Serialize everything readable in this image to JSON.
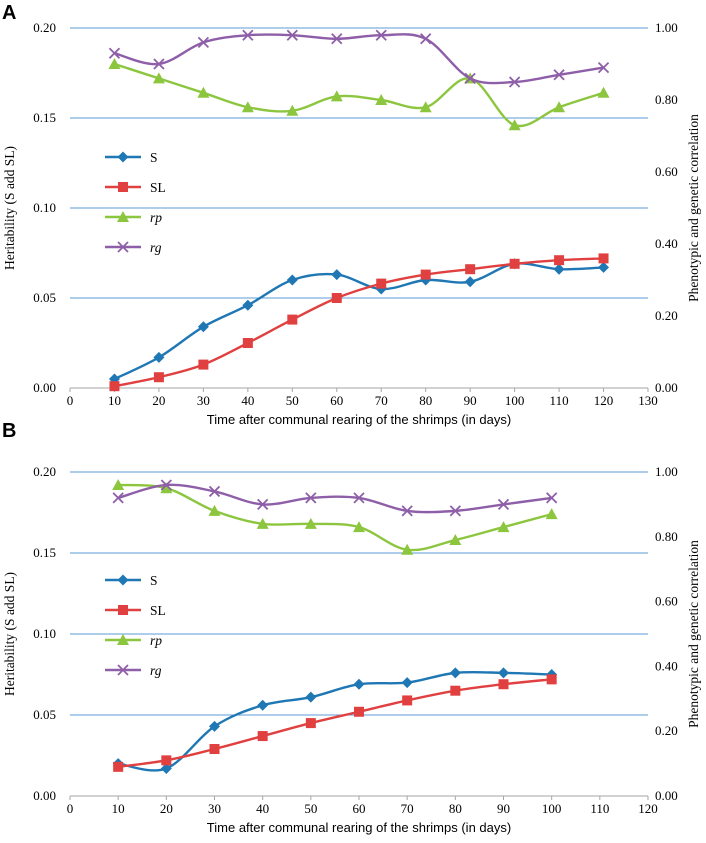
{
  "chart_data": [
    {
      "panel": "A",
      "type": "line",
      "xlabel": "Time after communal rearing of the shrimps (in days)",
      "ylabel": "Heritability (S add SL)",
      "y2label": "Phenotypic and genetic correlation",
      "xlim": [
        0,
        130
      ],
      "xticks": [
        0,
        10,
        20,
        30,
        40,
        50,
        60,
        70,
        80,
        90,
        100,
        110,
        120,
        130
      ],
      "ylim": [
        0,
        0.2
      ],
      "yticks": [
        "0.00",
        "0.05",
        "0.10",
        "0.15",
        "0.20"
      ],
      "y2lim": [
        0,
        1
      ],
      "y2ticks": [
        "0.00",
        "0.20",
        "0.40",
        "0.60",
        "0.80",
        "1.00"
      ],
      "grid": true,
      "legend": "center-left",
      "x": [
        10,
        20,
        30,
        40,
        50,
        60,
        70,
        80,
        90,
        100,
        110,
        120
      ],
      "series": [
        {
          "name": "S",
          "axis": "left",
          "color": "#1f77b4",
          "marker": "diamond",
          "italic": false,
          "values": [
            0.005,
            0.017,
            0.034,
            0.046,
            0.06,
            0.063,
            0.055,
            0.06,
            0.059,
            0.069,
            0.066,
            0.067
          ]
        },
        {
          "name": "SL",
          "axis": "left",
          "color": "#e04040",
          "marker": "square",
          "italic": false,
          "values": [
            0.001,
            0.006,
            0.013,
            0.025,
            0.038,
            0.05,
            0.058,
            0.063,
            0.066,
            0.069,
            0.071,
            0.072
          ]
        },
        {
          "name": "rp",
          "axis": "right",
          "color": "#8cc63f",
          "marker": "triangle",
          "italic": true,
          "values": [
            0.9,
            0.86,
            0.82,
            0.78,
            0.77,
            0.81,
            0.8,
            0.78,
            0.86,
            0.73,
            0.78,
            0.82
          ]
        },
        {
          "name": "rg",
          "axis": "right",
          "color": "#8e5fa8",
          "marker": "x",
          "italic": true,
          "values": [
            0.93,
            0.9,
            0.96,
            0.98,
            0.98,
            0.97,
            0.98,
            0.97,
            0.86,
            0.85,
            0.87,
            0.89
          ]
        }
      ]
    },
    {
      "panel": "B",
      "type": "line",
      "xlabel": "Time after communal rearing of the shrimps (in days)",
      "ylabel": "Heritability (S add SL)",
      "y2label": "Phenotypic and genetic correlation",
      "xlim": [
        0,
        120
      ],
      "xticks": [
        0,
        10,
        20,
        30,
        40,
        50,
        60,
        70,
        80,
        90,
        100,
        110,
        120
      ],
      "ylim": [
        0,
        0.2
      ],
      "yticks": [
        "0.00",
        "0.05",
        "0.10",
        "0.15",
        "0.20"
      ],
      "y2lim": [
        0,
        1
      ],
      "y2ticks": [
        "0.00",
        "0.20",
        "0.40",
        "0.60",
        "0.80",
        "1.00"
      ],
      "grid": true,
      "legend": "center-left",
      "x": [
        10,
        20,
        30,
        40,
        50,
        60,
        70,
        80,
        90,
        100
      ],
      "series": [
        {
          "name": "S",
          "axis": "left",
          "color": "#1f77b4",
          "marker": "diamond",
          "italic": false,
          "values": [
            0.02,
            0.017,
            0.043,
            0.056,
            0.061,
            0.069,
            0.07,
            0.076,
            0.076,
            0.075
          ]
        },
        {
          "name": "SL",
          "axis": "left",
          "color": "#e04040",
          "marker": "square",
          "italic": false,
          "values": [
            0.018,
            0.022,
            0.029,
            0.037,
            0.045,
            0.052,
            0.059,
            0.065,
            0.069,
            0.072
          ]
        },
        {
          "name": "rp",
          "axis": "right",
          "color": "#8cc63f",
          "marker": "triangle",
          "italic": true,
          "values": [
            0.96,
            0.95,
            0.88,
            0.84,
            0.84,
            0.83,
            0.76,
            0.79,
            0.83,
            0.87
          ]
        },
        {
          "name": "rg",
          "axis": "right",
          "color": "#8e5fa8",
          "marker": "x",
          "italic": true,
          "values": [
            0.92,
            0.96,
            0.94,
            0.9,
            0.92,
            0.92,
            0.88,
            0.88,
            0.9,
            0.92
          ]
        }
      ]
    }
  ]
}
